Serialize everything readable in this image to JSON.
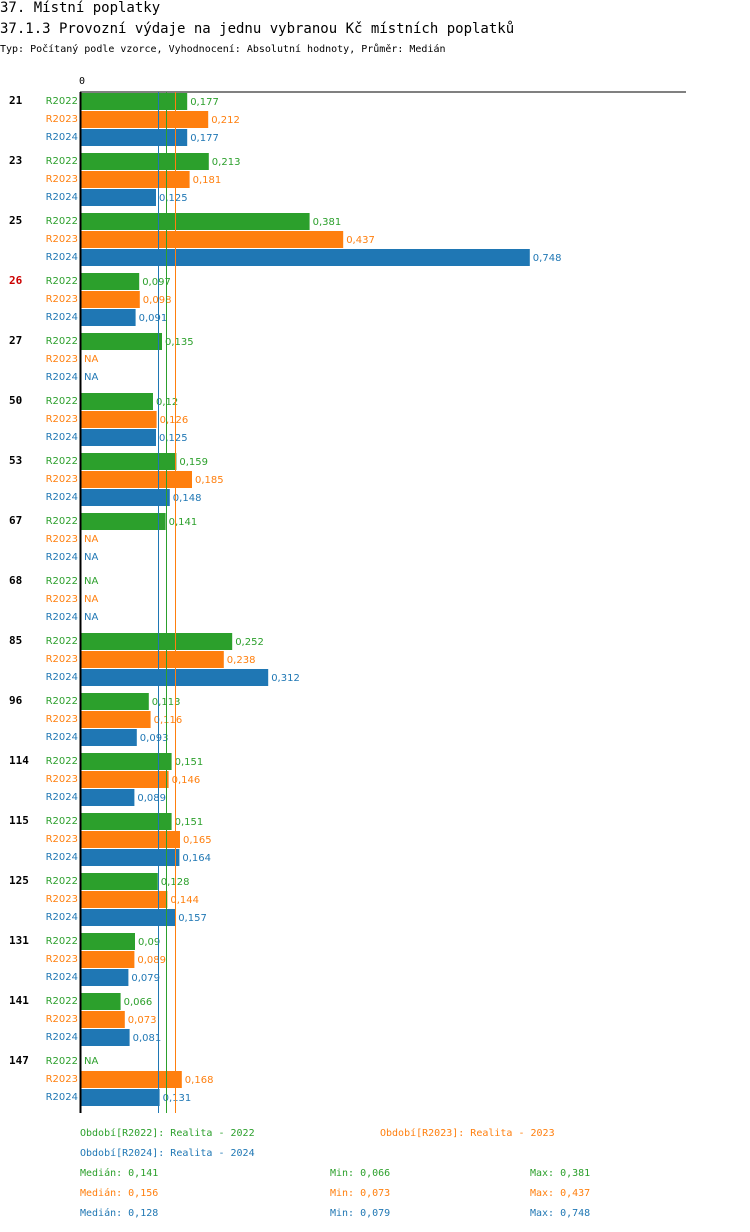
{
  "header": {
    "title": "37. Místní poplatky",
    "subtitle": "37.1.3 Provozní výdaje na jednu vybranou Kč místních poplatků",
    "info": "Typ: Počítaný podle vzorce, Vyhodnocení: Absolutní hodnoty, Průměr: Medián"
  },
  "colors": {
    "R2022": "#2ca02c",
    "R2023": "#ff7f0e",
    "R2024": "#1f77b4",
    "highlight": "#cc0000",
    "axis": "#000000"
  },
  "chart_data": {
    "type": "bar",
    "orientation": "horizontal",
    "axis_zero_label": "0",
    "xlim": [
      0,
      0.748
    ],
    "na_label": "NA",
    "series_names": [
      "R2022",
      "R2023",
      "R2024"
    ],
    "categories": [
      {
        "label": "21",
        "highlight": false,
        "values": [
          "0,177",
          "0,212",
          "0,177"
        ]
      },
      {
        "label": "23",
        "highlight": false,
        "values": [
          "0,213",
          "0,181",
          "0,125"
        ]
      },
      {
        "label": "25",
        "highlight": false,
        "values": [
          "0,381",
          "0,437",
          "0,748"
        ]
      },
      {
        "label": "26",
        "highlight": true,
        "values": [
          "0,097",
          "0,098",
          "0,091"
        ]
      },
      {
        "label": "27",
        "highlight": false,
        "values": [
          "0,135",
          null,
          null
        ]
      },
      {
        "label": "50",
        "highlight": false,
        "values": [
          "0,12",
          "0,126",
          "0,125"
        ]
      },
      {
        "label": "53",
        "highlight": false,
        "values": [
          "0,159",
          "0,185",
          "0,148"
        ]
      },
      {
        "label": "67",
        "highlight": false,
        "values": [
          "0,141",
          null,
          null
        ]
      },
      {
        "label": "68",
        "highlight": false,
        "values": [
          null,
          null,
          null
        ]
      },
      {
        "label": "85",
        "highlight": false,
        "values": [
          "0,252",
          "0,238",
          "0,312"
        ]
      },
      {
        "label": "96",
        "highlight": false,
        "values": [
          "0,113",
          "0,116",
          "0,093"
        ]
      },
      {
        "label": "114",
        "highlight": false,
        "values": [
          "0,151",
          "0,146",
          "0,089"
        ]
      },
      {
        "label": "115",
        "highlight": false,
        "values": [
          "0,151",
          "0,165",
          "0,164"
        ]
      },
      {
        "label": "125",
        "highlight": false,
        "values": [
          "0,128",
          "0,144",
          "0,157"
        ]
      },
      {
        "label": "131",
        "highlight": false,
        "values": [
          "0,09",
          "0,089",
          "0,079"
        ]
      },
      {
        "label": "141",
        "highlight": false,
        "values": [
          "0,066",
          "0,073",
          "0,081"
        ]
      },
      {
        "label": "147",
        "highlight": false,
        "values": [
          null,
          "0,168",
          "0,131"
        ]
      }
    ],
    "reference_lines": [
      {
        "series": "R2022",
        "stat": "median",
        "value": 0.141
      },
      {
        "series": "R2023",
        "stat": "median",
        "value": 0.156
      },
      {
        "series": "R2024",
        "stat": "median",
        "value": 0.128
      }
    ]
  },
  "legend": {
    "periods": [
      {
        "series": "R2022",
        "text": "Období[R2022]: Realita - 2022"
      },
      {
        "series": "R2023",
        "text": "Období[R2023]: Realita - 2023"
      },
      {
        "series": "R2024",
        "text": "Období[R2024]: Realita - 2024"
      }
    ],
    "stats": [
      {
        "series": "R2022",
        "median": "Medián: 0,141",
        "min": "Min: 0,066",
        "max": "Max: 0,381"
      },
      {
        "series": "R2023",
        "median": "Medián: 0,156",
        "min": "Min: 0,073",
        "max": "Max: 0,437"
      },
      {
        "series": "R2024",
        "median": "Medián: 0,128",
        "min": "Min: 0,079",
        "max": "Max: 0,748"
      }
    ]
  }
}
